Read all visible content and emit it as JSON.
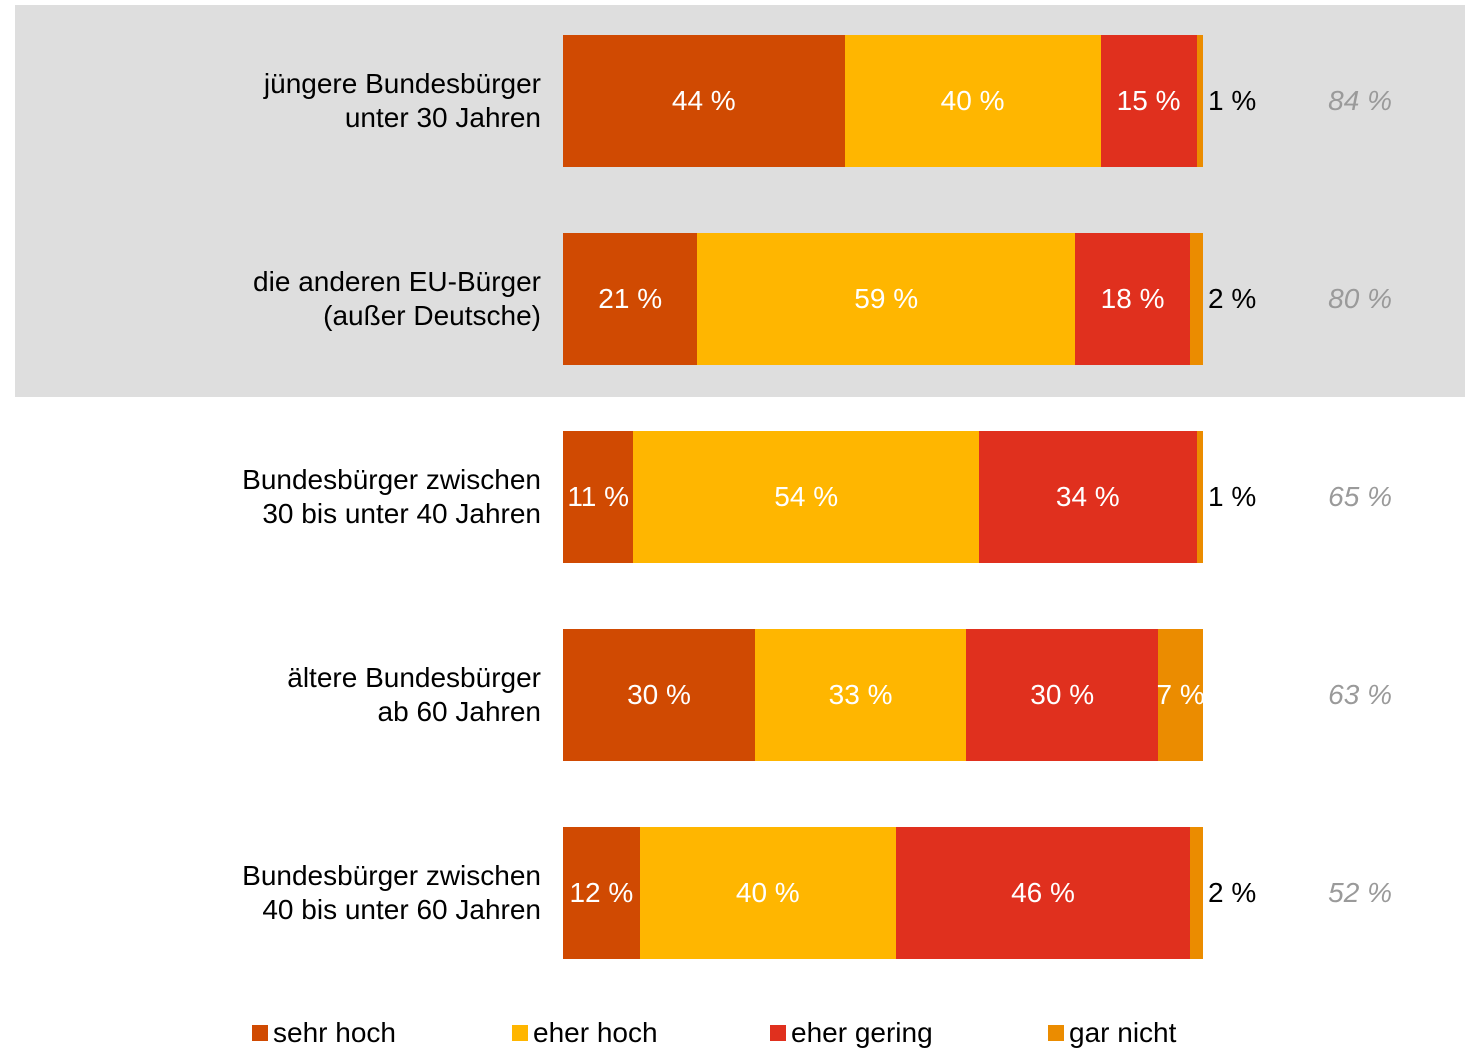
{
  "chart_data": {
    "type": "stacked_bar_horizontal",
    "categories": [
      "jüngere Bundesbürger\nunter 30 Jahren",
      "die anderen EU-Bürger\n(außer Deutsche)",
      "Bundesbürger zwischen\n30 bis unter 40 Jahren",
      "ältere Bundesbürger\nab 60 Jahren",
      "Bundesbürger zwischen\n40 bis unter 60 Jahren"
    ],
    "xlim": [
      0,
      100
    ],
    "series": [
      {
        "name": "sehr hoch",
        "color": "#d04a02",
        "values": [
          44,
          21,
          11,
          30,
          12
        ],
        "value_labels": [
          "44 %",
          "21 %",
          "11 %",
          "30 %",
          "12 %"
        ]
      },
      {
        "name": "eher hoch",
        "color": "#ffb600",
        "values": [
          40,
          59,
          54,
          33,
          40
        ],
        "value_labels": [
          "40 %",
          "59 %",
          "54 %",
          "33 %",
          "40 %"
        ]
      },
      {
        "name": "eher gering",
        "color": "#e0301e",
        "values": [
          15,
          18,
          34,
          30,
          46
        ],
        "value_labels": [
          "15 %",
          "18 %",
          "34 %",
          "30 %",
          "46 %"
        ]
      },
      {
        "name": "gar nicht",
        "color": "#eb8c00",
        "values": [
          1,
          2,
          1,
          7,
          2
        ],
        "value_labels": [
          "1 %",
          "2 %",
          "1 %",
          "7 %",
          "2 %"
        ]
      }
    ],
    "totals": {
      "values": [
        84,
        80,
        65,
        63,
        52
      ],
      "value_labels": [
        "84 %",
        "80 %",
        "65 %",
        "63 %",
        "52 %"
      ]
    },
    "legend": "bottom"
  }
}
